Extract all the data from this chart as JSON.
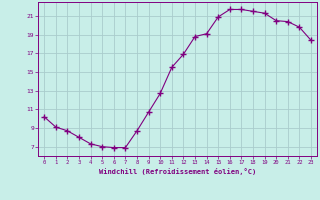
{
  "x": [
    0,
    1,
    2,
    3,
    4,
    5,
    6,
    7,
    8,
    9,
    10,
    11,
    12,
    13,
    14,
    15,
    16,
    17,
    18,
    19,
    20,
    21,
    22,
    23
  ],
  "y": [
    10.2,
    9.1,
    8.7,
    8.0,
    7.3,
    7.0,
    6.9,
    6.9,
    8.7,
    10.7,
    12.7,
    15.5,
    16.9,
    18.8,
    19.1,
    20.9,
    21.7,
    21.7,
    21.5,
    21.3,
    20.5,
    20.4,
    19.8,
    18.4
  ],
  "line_color": "#800080",
  "marker": "+",
  "marker_size": 4,
  "bg_color": "#c8eee8",
  "grid_color": "#b0d8d0",
  "xlabel": "Windchill (Refroidissement éolien,°C)",
  "ytick_labels": [
    "7",
    "9",
    "11",
    "13",
    "15",
    "17",
    "19",
    "21"
  ],
  "ytick_values": [
    7,
    9,
    11,
    13,
    15,
    17,
    19,
    21
  ],
  "xlim": [
    -0.5,
    23.5
  ],
  "ylim": [
    6.0,
    22.5
  ],
  "label_color": "#800080",
  "tick_color": "#800080",
  "spine_color": "#800080",
  "grid_line_color": "#aacccc"
}
